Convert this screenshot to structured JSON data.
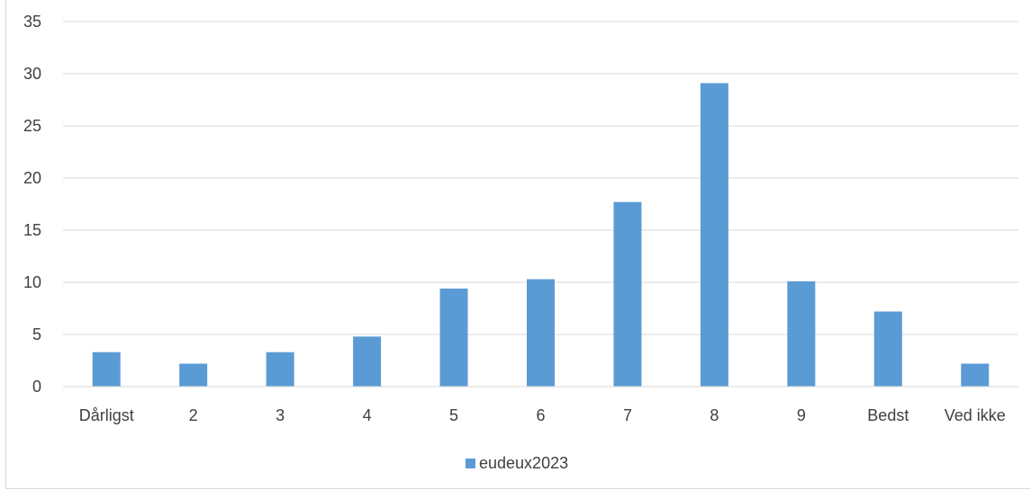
{
  "chart_data": {
    "type": "bar",
    "categories": [
      "Dårligst",
      "2",
      "3",
      "4",
      "5",
      "6",
      "7",
      "8",
      "9",
      "Bedst",
      "Ved ikke"
    ],
    "series": [
      {
        "name": "eudeux2023",
        "values": [
          3.3,
          2.2,
          3.3,
          4.8,
          9.4,
          10.3,
          17.7,
          29.1,
          10.1,
          7.2,
          2.2
        ],
        "color": "#5b9bd5"
      }
    ],
    "ylim": [
      0,
      35
    ],
    "yticks": [
      0,
      5,
      10,
      15,
      20,
      25,
      30,
      35
    ],
    "grid": true,
    "gridColor": "#d9d9d9",
    "legend": "bottom"
  }
}
